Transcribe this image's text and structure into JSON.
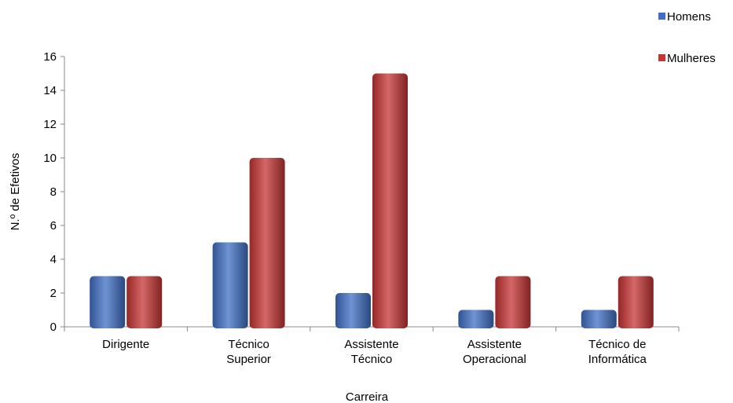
{
  "chart_data": {
    "type": "bar",
    "categories": [
      [
        "Dirigente"
      ],
      [
        "Técnico",
        "Superior"
      ],
      [
        "Assistente",
        "Técnico"
      ],
      [
        "Assistente",
        "Operacional"
      ],
      [
        "Técnico de",
        "Informática"
      ]
    ],
    "series": [
      {
        "name": "Homens",
        "values": [
          3,
          5,
          2,
          1,
          1
        ],
        "color": "#3f6fc4"
      },
      {
        "name": "Mulheres",
        "values": [
          3,
          10,
          15,
          3,
          3
        ],
        "color": "#c73434"
      }
    ],
    "xlabel": "Carreira",
    "ylabel": "N.º de Efetivos",
    "ylim": [
      0,
      16
    ],
    "yticks": [
      0,
      2,
      4,
      6,
      8,
      10,
      12,
      14,
      16
    ],
    "grid": false,
    "legend": "top-right"
  }
}
